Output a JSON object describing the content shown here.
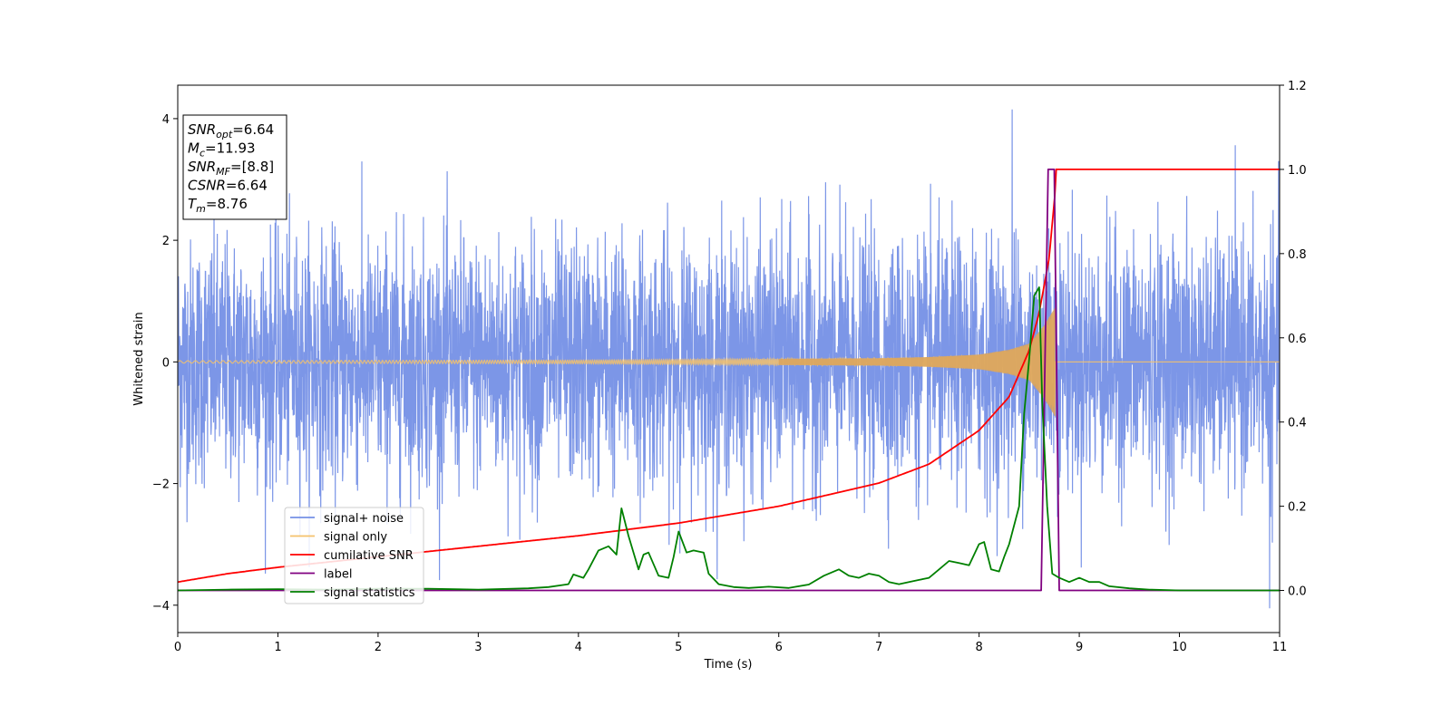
{
  "chart_data": {
    "type": "line",
    "title": "",
    "xlabel": "Time (s)",
    "ylabel_left": "Whitened strain",
    "ylabel_right": "",
    "xlim": [
      0,
      11
    ],
    "ylim_left": [
      -4.45,
      4.55
    ],
    "ylim_right": [
      -0.1,
      1.2
    ],
    "x_ticks": [
      "0",
      "1",
      "2",
      "3",
      "4",
      "5",
      "6",
      "7",
      "8",
      "9",
      "10",
      "11"
    ],
    "y_left_ticks": [
      "−4",
      "−2",
      "0",
      "2",
      "4"
    ],
    "y_right_ticks": [
      "0.0",
      "0.2",
      "0.4",
      "0.6",
      "0.8",
      "1.0",
      "1.2"
    ],
    "grid": false,
    "legend_position": "lower-left",
    "colors": {
      "signal_noise": "#7590e6",
      "signal_only": "#f5c26b",
      "cumulative_snr": "#ff0000",
      "label": "#800080",
      "signal_statistics": "#008000"
    },
    "series": [
      {
        "name": "signal+ noise",
        "axis": "left",
        "description_values": {
          "noise_std_approx": 1.0,
          "max_peak": 4.15,
          "max_peak_time": 8.33,
          "min_peak": -4.05,
          "min_peak_time": 10.9
        }
      },
      {
        "name": "signal only",
        "axis": "left",
        "values": {
          "envelope_t": [
            0,
            4,
            6,
            7,
            7.5,
            8,
            8.3,
            8.5,
            8.65,
            8.76
          ],
          "envelope_amp": [
            0.02,
            0.03,
            0.05,
            0.06,
            0.08,
            0.12,
            0.2,
            0.3,
            0.6,
            0.9
          ]
        }
      },
      {
        "name": "cumilative SNR",
        "axis": "right",
        "values": {
          "t": [
            0,
            0.5,
            1,
            2,
            3,
            4,
            5,
            6,
            7,
            7.5,
            8,
            8.3,
            8.5,
            8.6,
            8.7,
            8.76,
            8.77,
            11
          ],
          "v": [
            0.02,
            0.04,
            0.055,
            0.08,
            0.105,
            0.13,
            0.16,
            0.2,
            0.255,
            0.3,
            0.38,
            0.46,
            0.57,
            0.66,
            0.79,
            0.95,
            1.0,
            1.0
          ]
        }
      },
      {
        "name": "label",
        "axis": "right",
        "values": {
          "t": [
            0,
            8.62,
            8.69,
            8.73,
            8.75,
            8.8,
            11
          ],
          "v": [
            0,
            0,
            1.0,
            1.0,
            1.0,
            0,
            0
          ]
        }
      },
      {
        "name": "signal statistics",
        "axis": "right",
        "values": {
          "t": [
            0,
            0.5,
            1.0,
            1.5,
            2.0,
            2.5,
            3.0,
            3.5,
            3.7,
            3.9,
            3.95,
            4.05,
            4.1,
            4.2,
            4.3,
            4.38,
            4.43,
            4.5,
            4.6,
            4.65,
            4.7,
            4.8,
            4.9,
            4.95,
            5.0,
            5.08,
            5.15,
            5.25,
            5.3,
            5.4,
            5.55,
            5.7,
            5.9,
            6.1,
            6.3,
            6.45,
            6.6,
            6.7,
            6.8,
            6.9,
            7.0,
            7.1,
            7.2,
            7.3,
            7.4,
            7.5,
            7.6,
            7.7,
            7.8,
            7.9,
            8.0,
            8.05,
            8.12,
            8.2,
            8.25,
            8.3,
            8.4,
            8.45,
            8.5,
            8.55,
            8.6,
            8.63,
            8.68,
            8.73,
            8.8,
            8.9,
            9.0,
            9.1,
            9.2,
            9.3,
            9.5,
            9.7,
            10.0,
            10.5,
            11.0
          ],
          "v": [
            0.0,
            0.002,
            0.003,
            0.002,
            0.004,
            0.004,
            0.002,
            0.005,
            0.008,
            0.015,
            0.038,
            0.03,
            0.05,
            0.095,
            0.105,
            0.085,
            0.195,
            0.13,
            0.05,
            0.085,
            0.09,
            0.035,
            0.03,
            0.08,
            0.14,
            0.09,
            0.095,
            0.09,
            0.04,
            0.015,
            0.008,
            0.006,
            0.009,
            0.006,
            0.014,
            0.035,
            0.05,
            0.035,
            0.03,
            0.04,
            0.035,
            0.02,
            0.015,
            0.02,
            0.025,
            0.03,
            0.05,
            0.07,
            0.065,
            0.06,
            0.11,
            0.115,
            0.05,
            0.045,
            0.08,
            0.11,
            0.2,
            0.42,
            0.55,
            0.7,
            0.72,
            0.45,
            0.2,
            0.04,
            0.03,
            0.02,
            0.03,
            0.02,
            0.02,
            0.01,
            0.005,
            0.002,
            0.0,
            0.0,
            0.0
          ]
        }
      }
    ],
    "annotation": {
      "lines": [
        {
          "base": "SNR",
          "sub": "opt",
          "value": "=6.64"
        },
        {
          "base": "M",
          "sub": "c",
          "value": "=11.93"
        },
        {
          "base": "SNR",
          "sub": "MF",
          "value": "=[8.8]"
        },
        {
          "base": "CSNR",
          "sub": "",
          "value": "=6.64"
        },
        {
          "base": "T",
          "sub": "m",
          "value": "=8.76"
        }
      ]
    },
    "legend": [
      "signal+ noise",
      "signal only",
      "cumilative SNR",
      "label",
      "signal statistics"
    ]
  }
}
